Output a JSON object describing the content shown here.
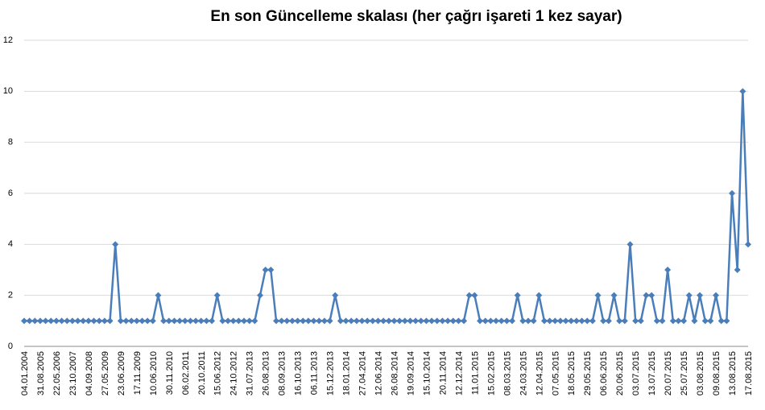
{
  "chart_data": {
    "type": "line",
    "title": "En son Güncelleme skalası (her çağrı işareti 1 kez sayar)",
    "categories": [
      "04.01.2004",
      null,
      null,
      "31.08.2005",
      null,
      null,
      "22.05.2006",
      null,
      null,
      "23.10.2007",
      null,
      null,
      "04.09.2008",
      null,
      null,
      "27.05.2009",
      null,
      null,
      "23.06.2009",
      null,
      null,
      "17.11.2009",
      null,
      null,
      "10.06.2010",
      null,
      null,
      "30.11.2010",
      null,
      null,
      "06.02.2011",
      null,
      null,
      "20.10.2011",
      null,
      null,
      "15.06.2012",
      null,
      null,
      "24.10.2012",
      null,
      null,
      "31.07.2013",
      null,
      null,
      "26.08.2013",
      null,
      null,
      "08.09.2013",
      null,
      null,
      "16.10.2013",
      null,
      null,
      "06.11.2013",
      null,
      null,
      "15.12.2013",
      null,
      null,
      "18.01.2014",
      null,
      null,
      "27.04.2014",
      null,
      null,
      "12.06.2014",
      null,
      null,
      "26.08.2014",
      null,
      null,
      "19.09.2014",
      null,
      null,
      "15.10.2014",
      null,
      null,
      "20.11.2014",
      null,
      null,
      "12.12.2014",
      null,
      null,
      "11.01.2015",
      null,
      null,
      "15.02.2015",
      null,
      null,
      "08.03.2015",
      null,
      null,
      "24.03.2015",
      null,
      null,
      "12.04.2015",
      null,
      null,
      "07.05.2015",
      null,
      null,
      "18.05.2015",
      null,
      null,
      "29.05.2015",
      null,
      null,
      "06.06.2015",
      null,
      null,
      "20.06.2015",
      null,
      null,
      "03.07.2015",
      null,
      null,
      "13.07.2015",
      null,
      null,
      "20.07.2015",
      null,
      null,
      "25.07.2015",
      null,
      null,
      "03.08.2015",
      null,
      null,
      "09.08.2015",
      null,
      null,
      "13.08.2015",
      null,
      null,
      "17.08.2015"
    ],
    "values": [
      1,
      1,
      1,
      1,
      1,
      1,
      1,
      1,
      1,
      1,
      1,
      1,
      1,
      1,
      1,
      1,
      1,
      4,
      1,
      1,
      1,
      1,
      1,
      1,
      1,
      2,
      1,
      1,
      1,
      1,
      1,
      1,
      1,
      1,
      1,
      1,
      2,
      1,
      1,
      1,
      1,
      1,
      1,
      1,
      2,
      3,
      3,
      1,
      1,
      1,
      1,
      1,
      1,
      1,
      1,
      1,
      1,
      1,
      2,
      1,
      1,
      1,
      1,
      1,
      1,
      1,
      1,
      1,
      1,
      1,
      1,
      1,
      1,
      1,
      1,
      1,
      1,
      1,
      1,
      1,
      1,
      1,
      1,
      2,
      2,
      1,
      1,
      1,
      1,
      1,
      1,
      1,
      2,
      1,
      1,
      1,
      2,
      1,
      1,
      1,
      1,
      1,
      1,
      1,
      1,
      1,
      1,
      2,
      1,
      1,
      2,
      1,
      1,
      4,
      1,
      1,
      2,
      2,
      1,
      1,
      3,
      1,
      1,
      1,
      2,
      1,
      2,
      1,
      1,
      2,
      1,
      1,
      6,
      3,
      10,
      4
    ],
    "color": "#4a7ebb",
    "ylim": [
      0,
      12
    ],
    "yticks": [
      0,
      2,
      4,
      6,
      8,
      10,
      12
    ],
    "grid": true
  }
}
